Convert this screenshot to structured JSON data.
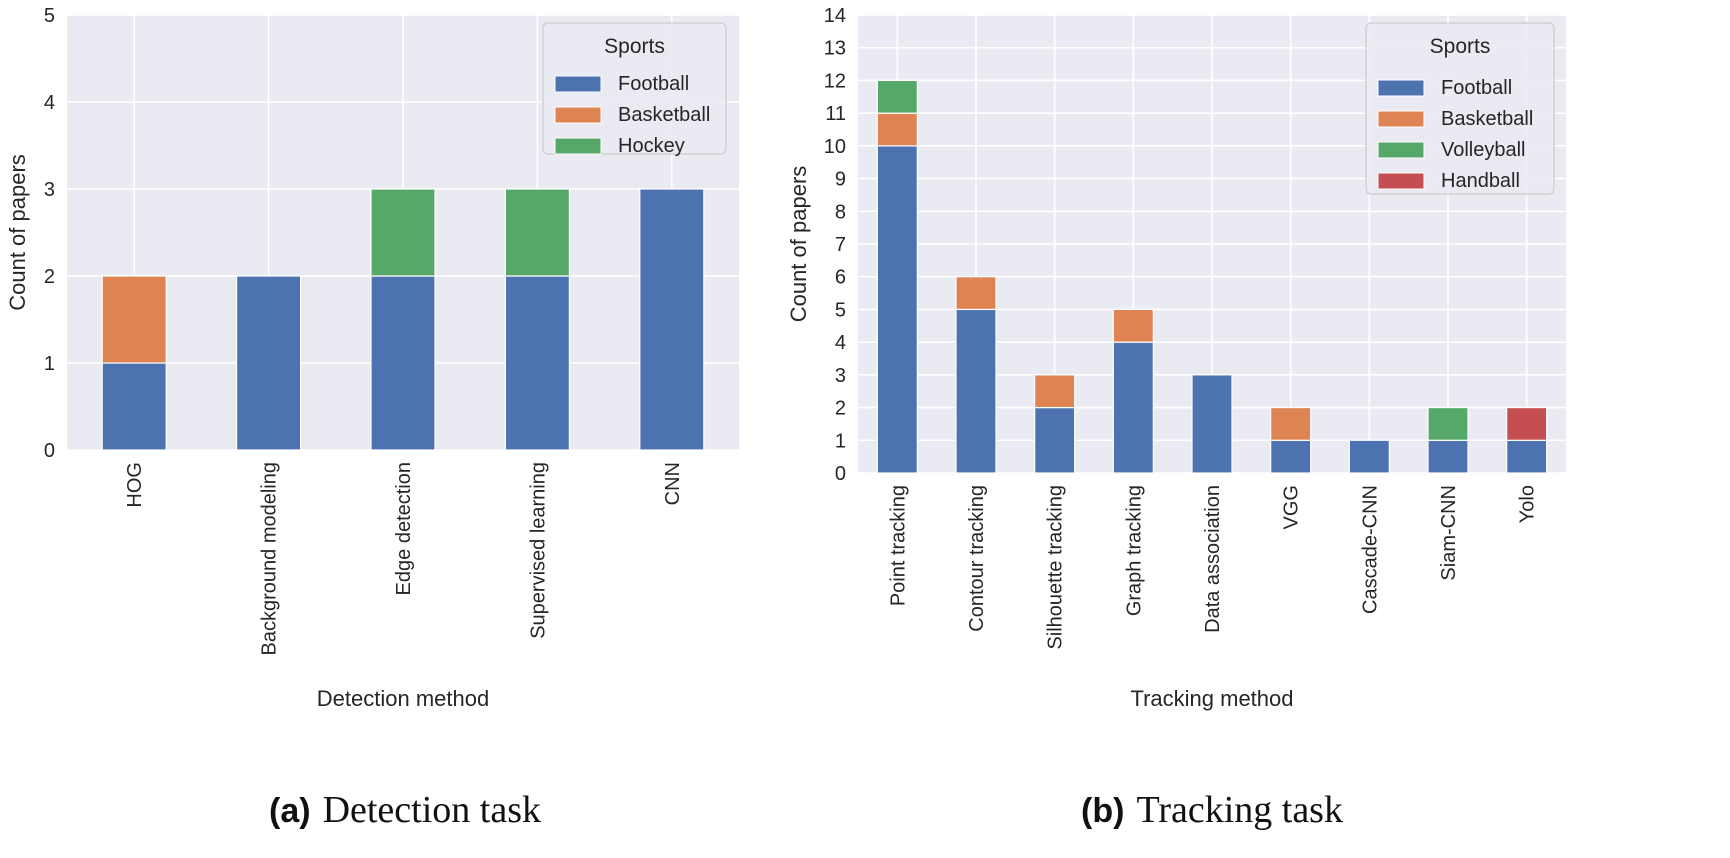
{
  "chart_data": [
    {
      "type": "bar",
      "stacked": true,
      "categories": [
        "HOG",
        "Background modeling",
        "Edge detection",
        "Supervised learning",
        "CNN"
      ],
      "series": [
        {
          "name": "Football",
          "values": [
            1,
            2,
            2,
            2,
            3
          ]
        },
        {
          "name": "Basketball",
          "values": [
            1,
            0,
            0,
            0,
            0
          ]
        },
        {
          "name": "Hockey",
          "values": [
            0,
            0,
            1,
            1,
            0
          ]
        }
      ],
      "xlabel": "Detection method",
      "ylabel": "Count of papers",
      "ylim": [
        0,
        5
      ],
      "yticks": [
        "0",
        "1",
        "2",
        "3",
        "4",
        "5"
      ],
      "legend_title": "Sports",
      "legend_position": "top-right",
      "grid": true,
      "caption_label": "(a)",
      "caption_text": "Detection task"
    },
    {
      "type": "bar",
      "stacked": true,
      "categories": [
        "Point tracking",
        "Contour tracking",
        "Silhouette tracking",
        "Graph tracking",
        "Data association",
        "VGG",
        "Cascade-CNN",
        "Siam-CNN",
        "Yolo"
      ],
      "series": [
        {
          "name": "Football",
          "values": [
            10,
            5,
            2,
            4,
            3,
            1,
            1,
            1,
            1
          ]
        },
        {
          "name": "Basketball",
          "values": [
            1,
            1,
            1,
            1,
            0,
            1,
            0,
            0,
            0
          ]
        },
        {
          "name": "Volleyball",
          "values": [
            1,
            0,
            0,
            0,
            0,
            0,
            0,
            1,
            0
          ]
        },
        {
          "name": "Handball",
          "values": [
            0,
            0,
            0,
            0,
            0,
            0,
            0,
            0,
            1
          ]
        }
      ],
      "xlabel": "Tracking method",
      "ylabel": "Count of papers",
      "ylim": [
        0,
        14
      ],
      "yticks": [
        "0",
        "1",
        "2",
        "3",
        "4",
        "5",
        "6",
        "7",
        "8",
        "9",
        "10",
        "11",
        "12",
        "13",
        "14"
      ],
      "legend_title": "Sports",
      "legend_position": "top-right",
      "grid": true,
      "caption_label": "(b)",
      "caption_text": "Tracking task"
    }
  ],
  "colors": {
    "Football": "#4c72b0",
    "Basketball": "#dd8452",
    "Hockey": "#55a868",
    "Volleyball": "#55a868",
    "Handball": "#c44e52",
    "plot_bg": "#eaeaf2",
    "grid": "#ffffff"
  }
}
